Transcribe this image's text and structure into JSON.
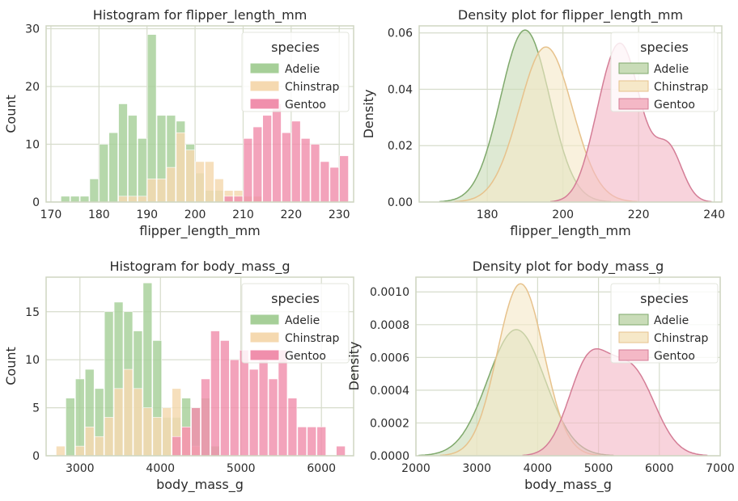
{
  "colors": {
    "Adelie": "#a6cf98",
    "Chinstrap": "#f5d9b0",
    "Gentoo": "#f08fac",
    "Adelie_kde_fill": "#c9dcb8",
    "Chinstrap_kde_fill": "#f6e8c8",
    "Gentoo_kde_fill": "#f4b8c6",
    "Adelie_line": "#7fa96c",
    "Chinstrap_line": "#e7c28c",
    "Gentoo_line": "#d47d96",
    "grid": "#d6dccb",
    "frame": "#cfd6c2"
  },
  "chart_data": [
    {
      "type": "histogram",
      "title": "Histogram for flipper_length_mm",
      "xlabel": "flipper_length_mm",
      "ylabel": "Count",
      "xlim": [
        169,
        233
      ],
      "ylim": [
        0,
        30.5
      ],
      "xticks": [
        170,
        180,
        190,
        200,
        210,
        220,
        230
      ],
      "yticks": [
        0,
        10,
        20,
        30
      ],
      "grid": true,
      "legend": {
        "title": "species",
        "placement": "top-right",
        "entries": [
          "Adelie",
          "Chinstrap",
          "Gentoo"
        ]
      },
      "bin_edges": [
        172,
        174,
        176,
        178,
        180,
        182,
        184,
        186,
        188,
        190,
        192,
        194,
        196,
        198,
        200,
        202,
        204,
        206,
        208,
        210,
        212,
        214,
        216,
        218,
        220,
        222,
        224,
        226,
        228,
        230,
        232
      ],
      "series": [
        {
          "name": "Adelie",
          "values": [
            1,
            1,
            1,
            4,
            10,
            12,
            17,
            15,
            11,
            29,
            15,
            15,
            14,
            10,
            5,
            2,
            2,
            1,
            0,
            1,
            1,
            0,
            0,
            0,
            0,
            0,
            0,
            0,
            0,
            0
          ]
        },
        {
          "name": "Chinstrap",
          "values": [
            0,
            0,
            0,
            0,
            0,
            0,
            1,
            1,
            1,
            4,
            4,
            6,
            12,
            9,
            7,
            7,
            4,
            2,
            2,
            1,
            1,
            0,
            0,
            0,
            0,
            0,
            0,
            0,
            0,
            0
          ]
        },
        {
          "name": "Gentoo",
          "values": [
            0,
            0,
            0,
            0,
            0,
            0,
            0,
            0,
            0,
            0,
            0,
            0,
            0,
            0,
            0,
            0,
            0,
            1,
            1,
            11,
            13,
            15,
            17,
            12,
            14,
            11,
            10,
            7,
            6,
            8
          ]
        }
      ]
    },
    {
      "type": "area",
      "title": "Density plot for flipper_length_mm",
      "xlabel": "flipper_length_mm",
      "ylabel": "Density",
      "xlim": [
        162,
        242
      ],
      "ylim": [
        0,
        0.0625
      ],
      "xticks": [
        180,
        200,
        220,
        240
      ],
      "yticks": [
        0.0,
        0.02,
        0.04,
        0.06
      ],
      "ytick_labels": [
        "0.00",
        "0.02",
        "0.04",
        "0.06"
      ],
      "grid": true,
      "legend": {
        "title": "species",
        "placement": "top-right",
        "entries": [
          "Adelie",
          "Chinstrap",
          "Gentoo"
        ]
      },
      "series": [
        {
          "name": "Adelie",
          "curve": "gaussian",
          "mean": 190,
          "sd": 6.5,
          "peak": 0.061
        },
        {
          "name": "Chinstrap",
          "curve": "gaussian",
          "mean": 195.5,
          "sd": 7.0,
          "peak": 0.055
        },
        {
          "name": "Gentoo",
          "curve": "mixture",
          "components": [
            {
              "mean": 215.5,
              "sd": 5.2,
              "weight": 0.054
            },
            {
              "mean": 228,
              "sd": 3.6,
              "weight": 0.018
            },
            {
              "mean": 209,
              "sd": 4.0,
              "weight": 0.008
            }
          ]
        }
      ]
    },
    {
      "type": "histogram",
      "title": "Histogram for body_mass_g",
      "xlabel": "body_mass_g",
      "ylabel": "Count",
      "xlim": [
        2580,
        6400
      ],
      "ylim": [
        0,
        18.6
      ],
      "xticks": [
        3000,
        4000,
        5000,
        6000
      ],
      "yticks": [
        0,
        5,
        10,
        15
      ],
      "grid": true,
      "legend": {
        "title": "species",
        "placement": "top-right",
        "entries": [
          "Adelie",
          "Chinstrap",
          "Gentoo"
        ]
      },
      "bin_edges": [
        2700,
        2820,
        2940,
        3060,
        3180,
        3300,
        3420,
        3540,
        3660,
        3780,
        3900,
        4020,
        4140,
        4260,
        4380,
        4500,
        4620,
        4740,
        4860,
        4980,
        5100,
        5220,
        5340,
        5460,
        5580,
        5700,
        5820,
        5940,
        6060,
        6180,
        6300
      ],
      "series": [
        {
          "name": "Adelie",
          "values": [
            0,
            6,
            8,
            9,
            7,
            15,
            16,
            15,
            13,
            18,
            12,
            4,
            4,
            6,
            5,
            6,
            1,
            0,
            0,
            0,
            0,
            0,
            0,
            0,
            0,
            0,
            0,
            0,
            0,
            0
          ]
        },
        {
          "name": "Chinstrap",
          "values": [
            1,
            0,
            1,
            3,
            2,
            4,
            7,
            9,
            7,
            5,
            4,
            5,
            7,
            3,
            1,
            0,
            0,
            0,
            0,
            0,
            0,
            0,
            0,
            0,
            0,
            0,
            0,
            0,
            0,
            0
          ]
        },
        {
          "name": "Gentoo",
          "values": [
            0,
            0,
            0,
            0,
            0,
            0,
            0,
            0,
            0,
            0,
            0,
            0,
            2,
            3,
            5,
            8,
            13,
            12,
            10,
            11,
            9,
            10,
            8,
            11,
            6,
            3,
            3,
            3,
            0,
            1
          ]
        }
      ]
    },
    {
      "type": "area",
      "title": "Density plot for body_mass_g",
      "xlabel": "body_mass_g",
      "ylabel": "Density",
      "xlim": [
        2000,
        7000
      ],
      "ylim": [
        0,
        0.00109
      ],
      "xticks": [
        2000,
        3000,
        4000,
        5000,
        6000,
        7000
      ],
      "yticks": [
        0.0,
        0.0002,
        0.0004,
        0.0006,
        0.0008,
        0.001
      ],
      "ytick_labels": [
        "0.0000",
        "0.0002",
        "0.0004",
        "0.0006",
        "0.0008",
        "0.0010"
      ],
      "grid": true,
      "legend": {
        "title": "species",
        "placement": "top-right",
        "entries": [
          "Adelie",
          "Chinstrap",
          "Gentoo"
        ]
      },
      "series": [
        {
          "name": "Adelie",
          "curve": "gaussian",
          "mean": 3650,
          "sd": 470,
          "peak": 0.00077
        },
        {
          "name": "Chinstrap",
          "curve": "gaussian",
          "mean": 3720,
          "sd": 380,
          "peak": 0.00105
        },
        {
          "name": "Gentoo",
          "curve": "mixture",
          "components": [
            {
              "mean": 4830,
              "sd": 330,
              "weight": 0.00054
            },
            {
              "mean": 5550,
              "sd": 380,
              "weight": 0.00051
            }
          ]
        }
      ]
    }
  ]
}
